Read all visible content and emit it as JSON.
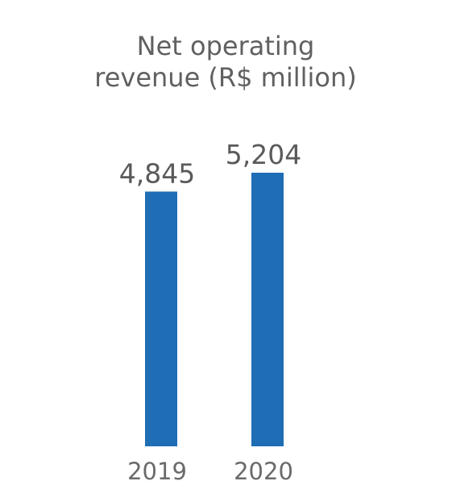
{
  "chart_data": {
    "type": "bar",
    "title_lines": [
      "Net operating",
      "revenue (R$ million)"
    ],
    "categories": [
      "2019",
      "2020"
    ],
    "values": [
      4845,
      5204
    ],
    "value_labels": [
      "4,845",
      "5,204"
    ],
    "bar_color": "#1f6db5",
    "grid": false
  }
}
